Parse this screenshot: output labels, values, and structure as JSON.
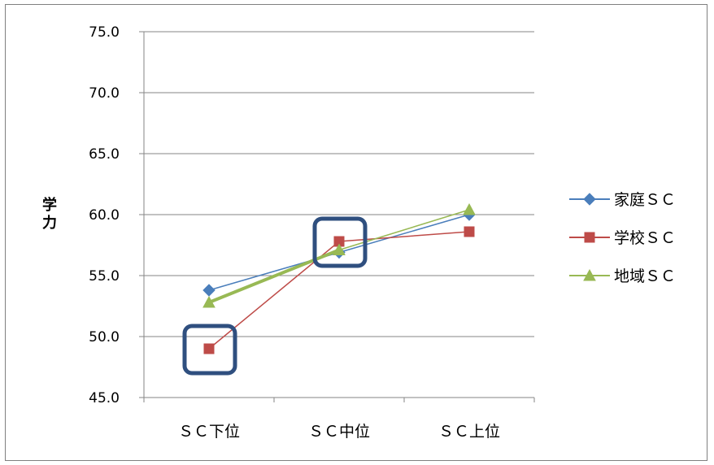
{
  "chart_data": {
    "type": "line",
    "title": "",
    "ylabel": "学力",
    "xlabel": "",
    "categories": [
      "ＳＣ下位",
      "ＳＣ中位",
      "ＳＣ上位"
    ],
    "y_ticks": [
      "45.0",
      "50.0",
      "55.0",
      "60.0",
      "65.0",
      "70.0",
      "75.0"
    ],
    "ylim": [
      45,
      75
    ],
    "grid": true,
    "legend_position": "right",
    "series": [
      {
        "name": "家庭ＳＣ",
        "values": [
          53.8,
          56.9,
          60.0
        ],
        "color": "#4a7ebb",
        "marker": "diamond"
      },
      {
        "name": "学校ＳＣ",
        "values": [
          49.0,
          57.8,
          58.6
        ],
        "color": "#be4b48",
        "marker": "square"
      },
      {
        "name": "地域ＳＣ",
        "values": [
          52.8,
          57.1,
          60.4
        ],
        "color": "#98b954",
        "marker": "triangle"
      }
    ],
    "highlights": [
      {
        "series": "学校ＳＣ",
        "category": "ＳＣ下位"
      },
      {
        "series": "学校ＳＣ",
        "category": "ＳＣ中位"
      }
    ],
    "highlight_color": "#2f4f7f"
  }
}
